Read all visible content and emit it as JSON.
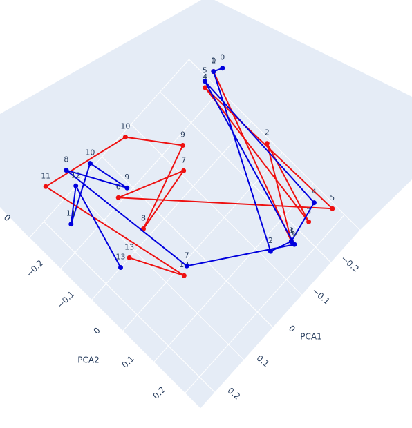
{
  "chart_data": {
    "type": "scatter3d",
    "xlabel": "PCA1",
    "ylabel": "PCA2",
    "xlim": [
      -0.3,
      0.25
    ],
    "ylim": [
      -0.3,
      0.25
    ],
    "xticks": [
      {
        "value": -0.2,
        "label": "−0.2"
      },
      {
        "value": -0.1,
        "label": "−0.1"
      },
      0,
      0.1,
      0.2
    ],
    "yticks": [
      {
        "value": -0.2,
        "label": "−0.2"
      },
      {
        "value": -0.1,
        "label": "−0.1"
      },
      0,
      0.1,
      0.2
    ],
    "zticks": [
      0
    ],
    "grid": true,
    "labels": [
      0,
      1,
      2,
      3,
      4,
      5,
      6,
      7,
      8,
      9,
      10,
      11,
      12,
      13
    ],
    "series": [
      {
        "color": "#ee1111",
        "x": [
          -0.32,
          -0.17,
          -0.29,
          -0.23,
          -0.28,
          -0.29,
          0.04,
          -0.11,
          0.05,
          -0.15,
          -0.07,
          0.14,
          0.06,
          0.12
        ],
        "y": [
          -0.24,
          0.15,
          -0.04,
          0.15,
          -0.23,
          0.17,
          -0.21,
          -0.14,
          -0.12,
          -0.18,
          -0.29,
          -0.35,
          0.02,
          -0.1
        ]
      },
      {
        "color": "#0000dd",
        "x": [
          -0.34,
          -0.32,
          -0.12,
          -0.17,
          -0.27,
          -0.29,
          -0.17,
          0.04,
          0.08,
          0.01,
          0.03,
          0.16,
          0.09,
          0.15
        ],
        "y": [
          -0.23,
          -0.24,
          0.13,
          0.15,
          0.13,
          -0.24,
          0.16,
          0.01,
          -0.34,
          -0.21,
          -0.31,
          -0.25,
          -0.3,
          -0.1
        ]
      }
    ]
  }
}
